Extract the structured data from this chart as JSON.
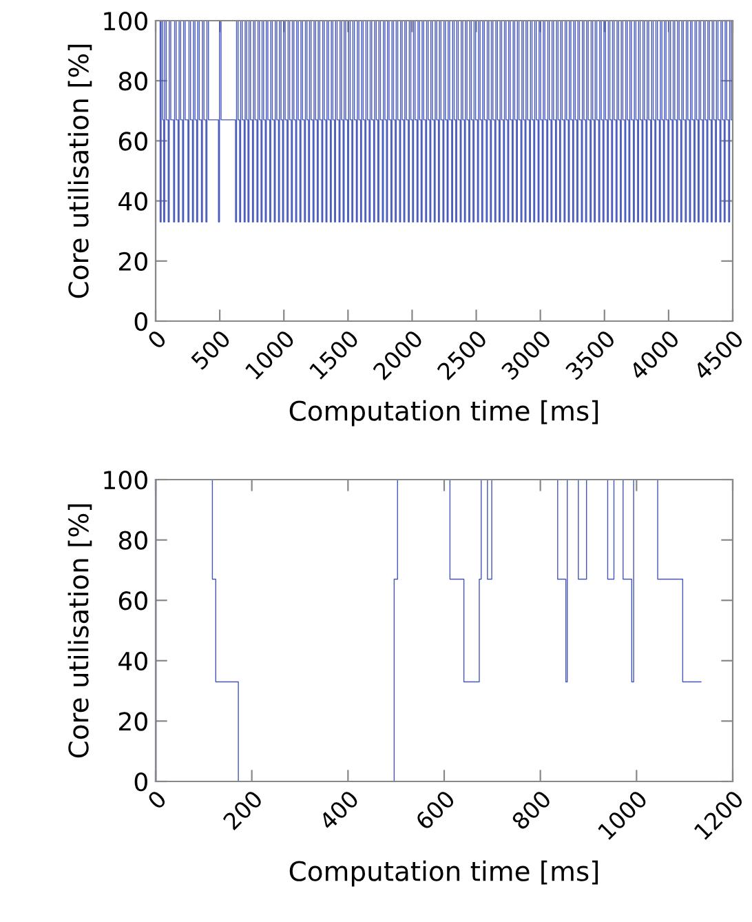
{
  "chart_data": [
    {
      "type": "step",
      "xlabel": "Computation time [ms]",
      "ylabel": "Core utilisation [%]",
      "color": "#4455bb",
      "xlim": [
        0,
        4500
      ],
      "ylim": [
        0,
        100
      ],
      "xticks": [
        0,
        500,
        1000,
        1500,
        2000,
        2500,
        3000,
        3500,
        4000,
        4500
      ],
      "yticks": [
        0,
        20,
        40,
        60,
        80,
        100
      ],
      "x": [
        0,
        2,
        35,
        43,
        55,
        63,
        71,
        83,
        98,
        106,
        118,
        140,
        148,
        160,
        175,
        183,
        195,
        210,
        218,
        230,
        252,
        260,
        272,
        287,
        295,
        307,
        320,
        328,
        340,
        357,
        365,
        377,
        392,
        400,
        412,
        490,
        498,
        510,
        623,
        631,
        643,
        655,
        663,
        675,
        690,
        698,
        710,
        720,
        728,
        740,
        755,
        763,
        775,
        790,
        798,
        810,
        822,
        830,
        842,
        855,
        863,
        875,
        890,
        898,
        910,
        925,
        933,
        945,
        958,
        966,
        978,
        990,
        998,
        1010,
        1025,
        1033,
        1045,
        1058,
        1066,
        1078,
        1092,
        1100,
        1112,
        1125,
        1133,
        1145,
        1160,
        1168,
        1180,
        1192,
        1200,
        1212,
        1227,
        1235,
        1247,
        1260,
        1268,
        1280,
        1295,
        1303,
        1315,
        1328,
        1336,
        1348,
        1362,
        1370,
        1382,
        1395,
        1403,
        1415,
        1430,
        1438,
        1450,
        1462,
        1470,
        1482,
        1497,
        1505,
        1517,
        1530,
        1538,
        1550,
        1565,
        1573,
        1585,
        1598,
        1606,
        1618,
        1632,
        1640,
        1652,
        1665,
        1673,
        1685,
        1700,
        1708,
        1720,
        1733,
        1741,
        1753,
        1768,
        1776,
        1788,
        1800,
        1808,
        1820,
        1835,
        1843,
        1855,
        1868,
        1876,
        1888,
        1902,
        1910,
        1922,
        1935,
        1943,
        1955,
        1970,
        1978,
        1990,
        2003,
        2011,
        2023,
        2038,
        2046,
        2058,
        2070,
        2078,
        2090,
        2105,
        2113,
        2125,
        2138,
        2146,
        2158,
        2172,
        2180,
        2192,
        2205,
        2213,
        2225,
        2240,
        2248,
        2260,
        2273,
        2281,
        2293,
        2308,
        2316,
        2328,
        2340,
        2348,
        2360,
        2375,
        2383,
        2395,
        2408,
        2416,
        2428,
        2442,
        2450,
        2462,
        2475,
        2483,
        2495,
        2510,
        2518,
        2530,
        2543,
        2551,
        2563,
        2578,
        2586,
        2598,
        2610,
        2618,
        2630,
        2645,
        2653,
        2665,
        2678,
        2686,
        2698,
        2712,
        2720,
        2732,
        2745,
        2753,
        2765,
        2780,
        2788,
        2800,
        2813,
        2821,
        2833,
        2848,
        2856,
        2868,
        2880,
        2888,
        2900,
        2915,
        2923,
        2935,
        2948,
        2956,
        2968,
        2982,
        2990,
        3002,
        3015,
        3023,
        3035,
        3050,
        3058,
        3070,
        3083,
        3091,
        3103,
        3118,
        3126,
        3138,
        3150,
        3158,
        3170,
        3185,
        3193,
        3205,
        3218,
        3226,
        3238,
        3252,
        3260,
        3272,
        3285,
        3293,
        3305,
        3320,
        3328,
        3340,
        3353,
        3361,
        3373,
        3388,
        3396,
        3408,
        3420,
        3428,
        3440,
        3455,
        3463,
        3475,
        3488,
        3496,
        3508,
        3522,
        3530,
        3542,
        3555,
        3563,
        3575,
        3590,
        3598,
        3610,
        3623,
        3631,
        3643,
        3658,
        3666,
        3678,
        3690,
        3698,
        3710,
        3725,
        3733,
        3745,
        3758,
        3766,
        3778,
        3792,
        3800,
        3812,
        3825,
        3833,
        3845,
        3860,
        3868,
        3880,
        3893,
        3901,
        3913,
        3928,
        3936,
        3948,
        3960,
        3968,
        3980,
        3995,
        4003,
        4015,
        4028,
        4036,
        4048,
        4062,
        4070,
        4082,
        4095,
        4103,
        4115,
        4130,
        4138,
        4150,
        4163,
        4171,
        4183,
        4198,
        4206,
        4218,
        4230,
        4238,
        4250,
        4265,
        4273,
        4285,
        4298,
        4306,
        4318,
        4332,
        4340,
        4352,
        4365,
        4373,
        4385,
        4400,
        4408,
        4420,
        4433,
        4441,
        4453,
        4468,
        4476,
        4488,
        4500
      ],
      "values": [
        0,
        100,
        33,
        100,
        67,
        33,
        100,
        67,
        33,
        100,
        67,
        33,
        100,
        67,
        33,
        100,
        67,
        33,
        100,
        67,
        33,
        100,
        67,
        33,
        100,
        67,
        33,
        100,
        67,
        33,
        100,
        67,
        33,
        100,
        67,
        33,
        100,
        67,
        33,
        100,
        67,
        33,
        100,
        67,
        33,
        100,
        67,
        33,
        100,
        67,
        33,
        100,
        67,
        33,
        100,
        67,
        33,
        100,
        67,
        33,
        100,
        67,
        33,
        100,
        67,
        33,
        100,
        67,
        33,
        100,
        67,
        33,
        100,
        67,
        33,
        100,
        67,
        33,
        100,
        67,
        33,
        100,
        67,
        33,
        100,
        67,
        33,
        100,
        67,
        33,
        100,
        67,
        33,
        100,
        67,
        33,
        100,
        67,
        33,
        100,
        67,
        33,
        100,
        67,
        33,
        100,
        67,
        33,
        100,
        67,
        33,
        100,
        67,
        33,
        100,
        67,
        33,
        100,
        67,
        33,
        100,
        67,
        33,
        100,
        67,
        33,
        100,
        67,
        33,
        100,
        67,
        33,
        100,
        67,
        33,
        100,
        67,
        33,
        100,
        67,
        33,
        100,
        67,
        33,
        100,
        67,
        33,
        100,
        67,
        33,
        100,
        67,
        33,
        100,
        67,
        33,
        100,
        67,
        33,
        100,
        67,
        33,
        100,
        67,
        33,
        100,
        67,
        33,
        100,
        67,
        33,
        100,
        67,
        33,
        100,
        67,
        33,
        100,
        67,
        33,
        100,
        67,
        33,
        100,
        67,
        33,
        100,
        67,
        33,
        100,
        67,
        33,
        100,
        67,
        33,
        100,
        67,
        33,
        100,
        67,
        33,
        100,
        67,
        33,
        100,
        67,
        33,
        100,
        67,
        33,
        100,
        67,
        33,
        100,
        67,
        33,
        100,
        67,
        33,
        100,
        67,
        33,
        100,
        67,
        33,
        100,
        67,
        33,
        100,
        67,
        33,
        100,
        67,
        33,
        100,
        67,
        33,
        100,
        67,
        33,
        100,
        67,
        33,
        100,
        67,
        33,
        100,
        67,
        33,
        100,
        67,
        33,
        100,
        67,
        33,
        100,
        67,
        33,
        100,
        67,
        33,
        100,
        67,
        33,
        100,
        67,
        33,
        100,
        67,
        33,
        100,
        67,
        33,
        100,
        67,
        33,
        100,
        67,
        33,
        100,
        67,
        33,
        100,
        67,
        33,
        100,
        67,
        33,
        100,
        67,
        33,
        100,
        67,
        33,
        100,
        67,
        33,
        100,
        67,
        33,
        100,
        67,
        33,
        100,
        67,
        33,
        100,
        67,
        33,
        100,
        67,
        33,
        100,
        67,
        33,
        100,
        67,
        33,
        100,
        67,
        33,
        100,
        67,
        33,
        100,
        67,
        33,
        100,
        67,
        33,
        100,
        67,
        33,
        100,
        67,
        33,
        100,
        67,
        33,
        100,
        67,
        33,
        100,
        67,
        33,
        100,
        67,
        33,
        100,
        67,
        33,
        100,
        67,
        33,
        100,
        67,
        33,
        100,
        67,
        33,
        100,
        67,
        33,
        100,
        67,
        33,
        100,
        67,
        33,
        100,
        67,
        33,
        100,
        67,
        33,
        100,
        67,
        33,
        100,
        67,
        33,
        100,
        67,
        100
      ]
    },
    {
      "type": "step",
      "xlabel": "Computation time [ms]",
      "ylabel": "Core utilisation [%]",
      "color": "#4455bb",
      "xlim": [
        0,
        1200
      ],
      "ylim": [
        0,
        100
      ],
      "xticks": [
        0,
        200,
        400,
        600,
        800,
        1000,
        1200
      ],
      "yticks": [
        0,
        20,
        40,
        60,
        80,
        100
      ],
      "x": [
        0,
        1,
        118,
        125,
        172,
        496,
        503,
        612,
        641,
        673,
        677,
        690,
        699,
        836,
        853,
        856,
        879,
        896,
        940,
        953,
        972,
        990,
        994,
        1044,
        1096,
        1134
      ],
      "values": [
        0,
        100,
        67,
        33,
        0,
        67,
        100,
        67,
        33,
        67,
        100,
        67,
        100,
        67,
        33,
        100,
        67,
        100,
        67,
        100,
        67,
        33,
        100,
        67,
        33,
        33
      ]
    }
  ]
}
